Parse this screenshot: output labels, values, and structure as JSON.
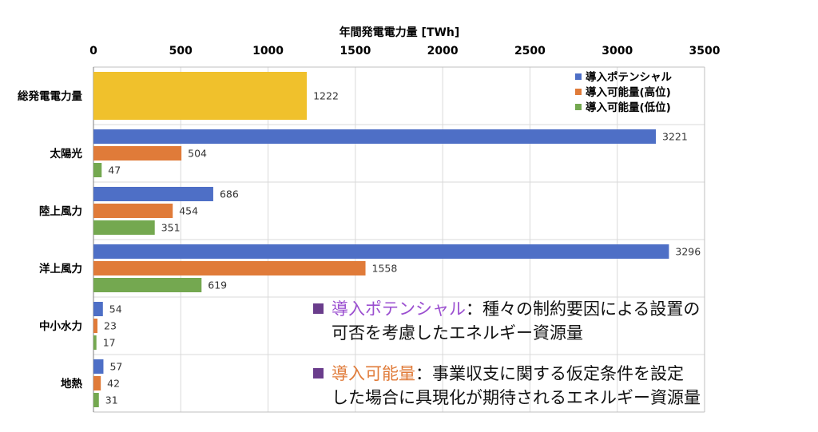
{
  "chart_data": {
    "type": "bar",
    "orientation": "horizontal",
    "axis_title": "年間発電電力量 [TWh]",
    "xlim": [
      0,
      3500
    ],
    "ticks": [
      0,
      500,
      1000,
      1500,
      2000,
      2500,
      3000,
      3500
    ],
    "grid": true,
    "legend_position": "top-right",
    "categories": [
      "総発電電力量",
      "太陽光",
      "陸上風力",
      "洋上風力",
      "中小水力",
      "地熱"
    ],
    "total": {
      "category": "総発電電力量",
      "value": 1222,
      "color": "#f0c12c"
    },
    "series": [
      {
        "name": "導入ポテンシャル",
        "color": "#4e6fc6",
        "values": [
          null,
          3221,
          686,
          3296,
          54,
          57
        ]
      },
      {
        "name": "導入可能量(高位)",
        "color": "#e07b39",
        "values": [
          null,
          504,
          454,
          1558,
          23,
          42
        ]
      },
      {
        "name": "導入可能量(低位)",
        "color": "#74a850",
        "values": [
          null,
          47,
          351,
          619,
          17,
          31
        ]
      }
    ]
  },
  "annotations": [
    {
      "term": "導入ポテンシャル",
      "term_color": "#9b4fd0",
      "line1": "：種々の制約要因による設置の",
      "line2": "可否を考慮したエネルギー資源量"
    },
    {
      "term": "導入可能量",
      "term_color": "#e07b39",
      "line1": "：事業収支に関する仮定条件を設定",
      "line2": "した場合に具現化が期待されるエネルギー資源量"
    }
  ]
}
